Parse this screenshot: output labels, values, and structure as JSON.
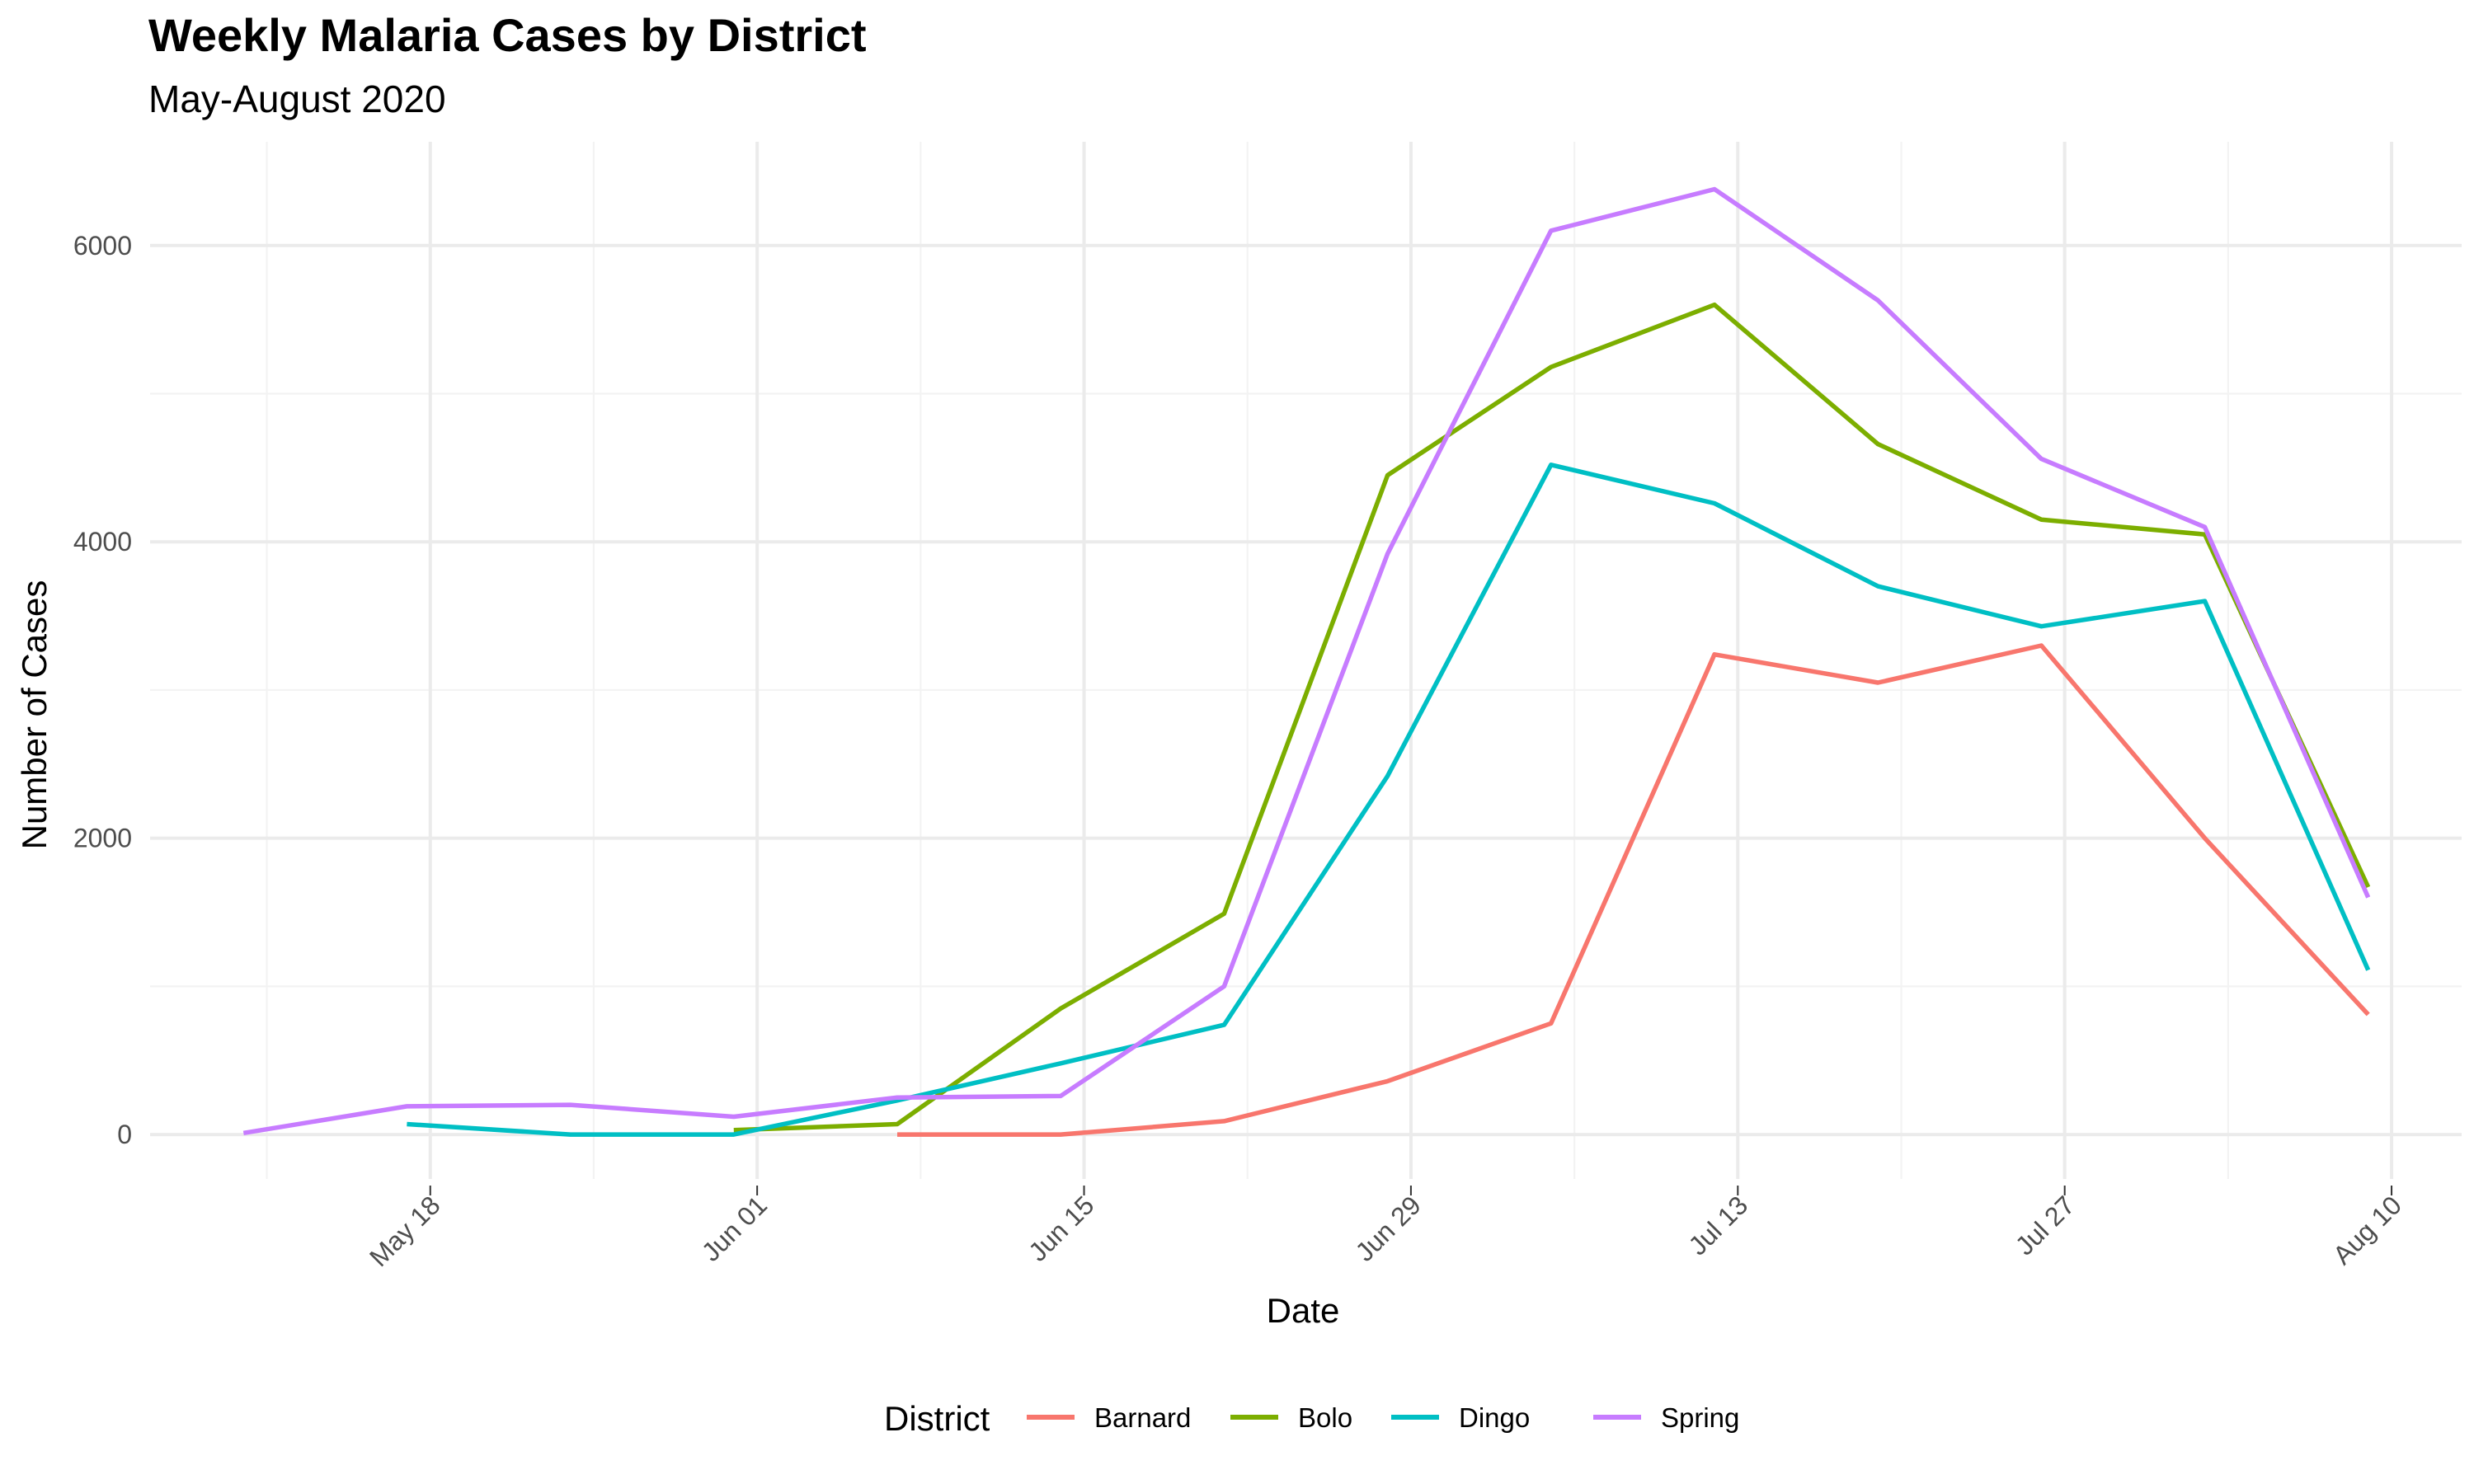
{
  "chart_data": {
    "type": "line",
    "title": "Weekly Malaria Cases by District",
    "subtitle": "May-August 2020",
    "xlabel": "Date",
    "ylabel": "Number of Cases",
    "x_ticks": [
      "May 18",
      "Jun 01",
      "Jun 15",
      "Jun 29",
      "Jul 13",
      "Jul 27",
      "Aug 10"
    ],
    "x_tick_dates": [
      "2020-05-18",
      "2020-06-01",
      "2020-06-15",
      "2020-06-29",
      "2020-07-13",
      "2020-07-27",
      "2020-08-10"
    ],
    "xlim": [
      "2020-05-06",
      "2020-08-13"
    ],
    "y_ticks": [
      0,
      2000,
      4000,
      6000
    ],
    "ylim": [
      -300,
      6700
    ],
    "grid": true,
    "legend_title": "District",
    "legend_position": "bottom",
    "series": [
      {
        "name": "Barnard",
        "color": "#F8766D",
        "points": [
          [
            "2020-06-07",
            0
          ],
          [
            "2020-06-14",
            0
          ],
          [
            "2020-06-21",
            90
          ],
          [
            "2020-06-28",
            360
          ],
          [
            "2020-07-05",
            750
          ],
          [
            "2020-07-12",
            3240
          ],
          [
            "2020-07-19",
            3050
          ],
          [
            "2020-07-26",
            3300
          ],
          [
            "2020-08-02",
            2000
          ],
          [
            "2020-08-09",
            810
          ]
        ]
      },
      {
        "name": "Bolo",
        "color": "#7CAE00",
        "points": [
          [
            "2020-05-31",
            30
          ],
          [
            "2020-06-07",
            70
          ],
          [
            "2020-06-14",
            850
          ],
          [
            "2020-06-21",
            1490
          ],
          [
            "2020-06-28",
            4450
          ],
          [
            "2020-07-05",
            5180
          ],
          [
            "2020-07-12",
            5600
          ],
          [
            "2020-07-19",
            4660
          ],
          [
            "2020-07-26",
            4150
          ],
          [
            "2020-08-02",
            4050
          ],
          [
            "2020-08-09",
            1670
          ]
        ]
      },
      {
        "name": "Dingo",
        "color": "#00BFC4",
        "points": [
          [
            "2020-05-17",
            70
          ],
          [
            "2020-05-24",
            0
          ],
          [
            "2020-05-31",
            0
          ],
          [
            "2020-06-07",
            230
          ],
          [
            "2020-06-14",
            480
          ],
          [
            "2020-06-21",
            740
          ],
          [
            "2020-06-28",
            2420
          ],
          [
            "2020-07-05",
            4520
          ],
          [
            "2020-07-12",
            4260
          ],
          [
            "2020-07-19",
            3700
          ],
          [
            "2020-07-26",
            3430
          ],
          [
            "2020-08-02",
            3600
          ],
          [
            "2020-08-09",
            1110
          ]
        ]
      },
      {
        "name": "Spring",
        "color": "#C77CFF",
        "points": [
          [
            "2020-05-10",
            10
          ],
          [
            "2020-05-17",
            190
          ],
          [
            "2020-05-24",
            200
          ],
          [
            "2020-05-31",
            120
          ],
          [
            "2020-06-07",
            250
          ],
          [
            "2020-06-14",
            260
          ],
          [
            "2020-06-21",
            1000
          ],
          [
            "2020-06-28",
            3920
          ],
          [
            "2020-07-05",
            6100
          ],
          [
            "2020-07-12",
            6380
          ],
          [
            "2020-07-19",
            5630
          ],
          [
            "2020-07-26",
            4560
          ],
          [
            "2020-08-02",
            4100
          ],
          [
            "2020-08-09",
            1600
          ]
        ]
      }
    ]
  }
}
